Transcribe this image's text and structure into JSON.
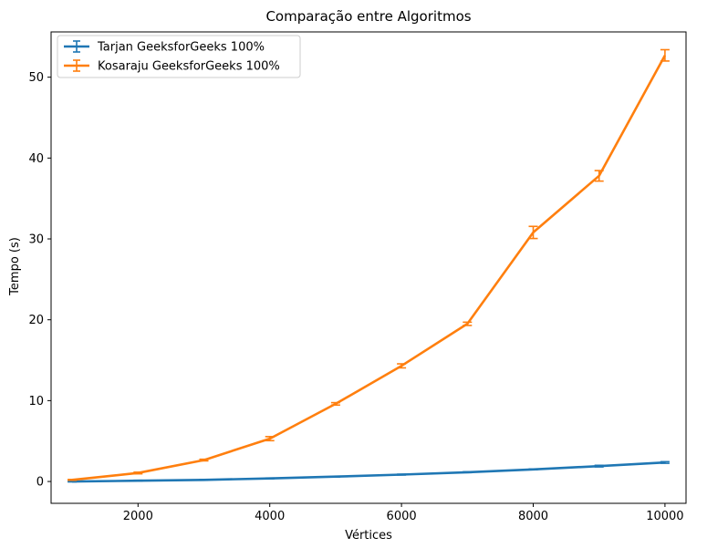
{
  "chart_data": {
    "type": "line",
    "title": "Comparação entre Algoritmos",
    "xlabel": "Vértices",
    "ylabel": "Tempo (s)",
    "xlim": [
      680,
      10320
    ],
    "ylim": [
      -2.7,
      55.6
    ],
    "xticks": [
      2000,
      4000,
      6000,
      8000,
      10000
    ],
    "yticks": [
      0,
      10,
      20,
      30,
      40,
      50
    ],
    "grid": false,
    "legend_position": "top-left",
    "series": [
      {
        "name": "Tarjan GeeksforGeeks 100%",
        "color": "#1f77b4",
        "x": [
          1000,
          2000,
          3000,
          4000,
          5000,
          6000,
          7000,
          8000,
          9000,
          10000
        ],
        "y": [
          0.0,
          0.1,
          0.2,
          0.38,
          0.6,
          0.85,
          1.15,
          1.5,
          1.9,
          2.35
        ],
        "err": [
          0.05,
          0.05,
          0.05,
          0.05,
          0.05,
          0.05,
          0.05,
          0.05,
          0.1,
          0.1
        ]
      },
      {
        "name": "Kosaraju GeeksforGeeks 100%",
        "color": "#ff7f0e",
        "x": [
          1000,
          2000,
          3000,
          4000,
          5000,
          6000,
          7000,
          8000,
          9000,
          10000
        ],
        "y": [
          0.2,
          1.05,
          2.65,
          5.3,
          9.6,
          14.3,
          19.5,
          30.8,
          37.8,
          52.7
        ],
        "err": [
          0.05,
          0.1,
          0.1,
          0.25,
          0.15,
          0.25,
          0.2,
          0.75,
          0.65,
          0.7
        ]
      }
    ]
  }
}
